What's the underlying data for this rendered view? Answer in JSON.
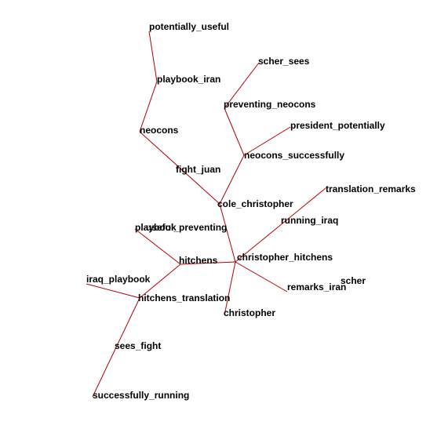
{
  "graph": {
    "edge_color": "#b00000",
    "label_color": "#000000",
    "background": "#ffffff",
    "nodes": [
      {
        "id": "potentially_useful",
        "label": "potentially_useful"
      },
      {
        "id": "playbook_iran",
        "label": "playbook_iran"
      },
      {
        "id": "neocons",
        "label": "neocons"
      },
      {
        "id": "fight_juan",
        "label": "fight_juan"
      },
      {
        "id": "cole_christopher",
        "label": "cole_christopher"
      },
      {
        "id": "scher_sees",
        "label": "scher_sees"
      },
      {
        "id": "preventing_neocons",
        "label": "preventing_neocons"
      },
      {
        "id": "president_potentially",
        "label": "president_potentially"
      },
      {
        "id": "neocons_successfully",
        "label": "neocons_successfully"
      },
      {
        "id": "translation_remarks",
        "label": "translation_remarks"
      },
      {
        "id": "running_iraq",
        "label": "running_iraq"
      },
      {
        "id": "christopher_hitchens",
        "label": "christopher_hitchens"
      },
      {
        "id": "playbook",
        "label": "playbook"
      },
      {
        "id": "useful_preventing",
        "label": "useful_preventing"
      },
      {
        "id": "hitchens",
        "label": "hitchens"
      },
      {
        "id": "iraq_playbook",
        "label": "iraq_playbook"
      },
      {
        "id": "hitchens_translation",
        "label": "hitchens_translation"
      },
      {
        "id": "remarks_iran",
        "label": "remarks_iran"
      },
      {
        "id": "scher",
        "label": "scher"
      },
      {
        "id": "christopher",
        "label": "christopher"
      },
      {
        "id": "sees_fight",
        "label": "sees_fight"
      },
      {
        "id": "successfully_running",
        "label": "successfully_running"
      }
    ],
    "edges": [
      [
        "potentially_useful",
        "playbook_iran"
      ],
      [
        "playbook_iran",
        "neocons"
      ],
      [
        "neocons",
        "cole_christopher"
      ],
      [
        "scher_sees",
        "preventing_neocons"
      ],
      [
        "preventing_neocons",
        "neocons_successfully"
      ],
      [
        "president_potentially",
        "neocons_successfully"
      ],
      [
        "neocons_successfully",
        "cole_christopher"
      ],
      [
        "cole_christopher",
        "christopher_hitchens"
      ],
      [
        "translation_remarks",
        "christopher_hitchens"
      ],
      [
        "christopher_hitchens",
        "hitchens"
      ],
      [
        "christopher_hitchens",
        "remarks_iran"
      ],
      [
        "christopher_hitchens",
        "christopher"
      ],
      [
        "playbook",
        "hitchens"
      ],
      [
        "hitchens",
        "hitchens_translation"
      ],
      [
        "iraq_playbook",
        "hitchens_translation"
      ],
      [
        "hitchens_translation",
        "successfully_running"
      ]
    ]
  }
}
